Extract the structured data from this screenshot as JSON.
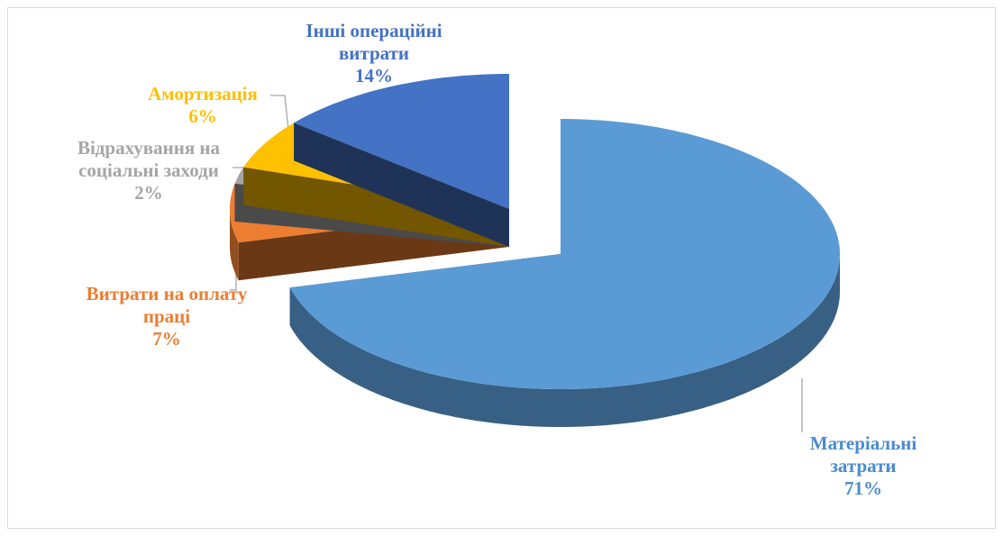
{
  "chart_data": {
    "type": "pie",
    "categories": [
      "Матеріальні затрати",
      "Витрати на оплату праці",
      "Відрахування на соціальні заходи",
      "Амортизація",
      "Інші операційні витрати"
    ],
    "values": [
      71,
      7,
      2,
      6,
      14
    ],
    "value_labels": [
      "71%",
      "7%",
      "2%",
      "6%",
      "14%"
    ],
    "colors": [
      "#5b9bd5",
      "#ed7d31",
      "#a5a5a5",
      "#ffc000",
      "#4472c4"
    ]
  }
}
